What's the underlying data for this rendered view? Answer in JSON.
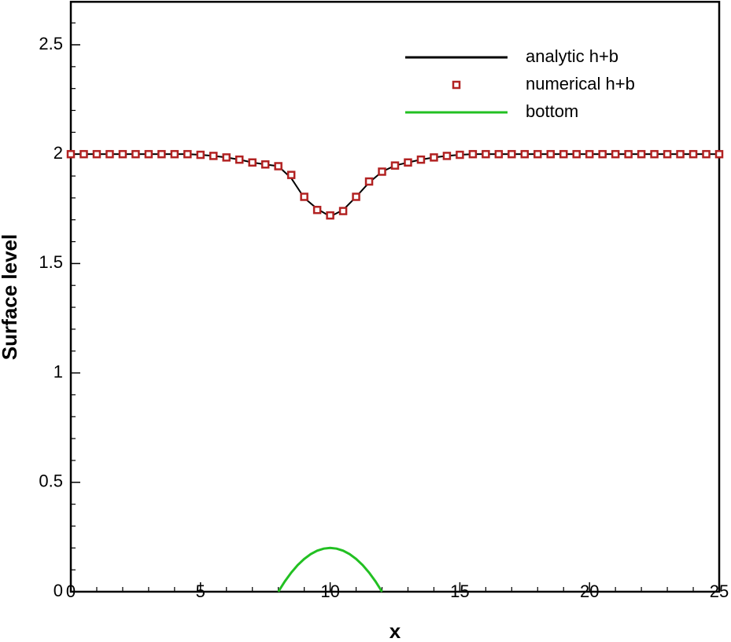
{
  "chart_data": {
    "type": "line",
    "x_label": "x",
    "y_label": "Surface level",
    "xlim": [
      0,
      25
    ],
    "ylim": [
      0,
      2.7
    ],
    "xticks": [
      0,
      5,
      10,
      15,
      20,
      25
    ],
    "yticks": [
      0,
      0.5,
      1,
      1.5,
      2,
      2.5
    ],
    "x_minor_ticks": [
      1,
      2,
      3,
      4,
      6,
      7,
      8,
      9,
      11,
      12,
      13,
      14,
      16,
      17,
      18,
      19,
      21,
      22,
      23,
      24
    ],
    "y_minor_ticks": [
      0.1,
      0.2,
      0.3,
      0.4,
      0.6,
      0.7,
      0.8,
      0.9,
      1.1,
      1.2,
      1.3,
      1.4,
      1.6,
      1.7,
      1.8,
      1.9,
      2.1,
      2.2,
      2.3,
      2.4,
      2.6
    ],
    "legend_position": "upper right",
    "series": [
      {
        "name": "analytic h+b",
        "color": "#000000",
        "style": "line",
        "x": [
          0,
          0.5,
          1,
          1.5,
          2,
          2.5,
          3,
          3.5,
          4,
          4.5,
          5,
          5.5,
          6,
          6.5,
          7,
          7.5,
          8,
          8.5,
          9,
          9.5,
          10,
          10.5,
          11,
          11.5,
          12,
          12.5,
          13,
          13.5,
          14,
          14.5,
          15,
          15.5,
          16,
          16.5,
          17,
          17.5,
          18,
          18.5,
          19,
          19.5,
          20,
          20.5,
          21,
          21.5,
          22,
          22.5,
          23,
          23.5,
          24,
          24.5,
          25
        ],
        "values": [
          2,
          2,
          2,
          2,
          2,
          2,
          2,
          2,
          2,
          2,
          1.997,
          1.992,
          1.985,
          1.975,
          1.962,
          1.953,
          1.945,
          1.89,
          1.8,
          1.75,
          1.715,
          1.745,
          1.805,
          1.87,
          1.92,
          1.948,
          1.962,
          1.975,
          1.985,
          1.992,
          1.997,
          2,
          2,
          2,
          2,
          2,
          2,
          2,
          2,
          2,
          2,
          2,
          2,
          2,
          2,
          2,
          2,
          2,
          2,
          2,
          2
        ]
      },
      {
        "name": "numerical h+b",
        "color": "#b22222",
        "style": "marker",
        "x": [
          0,
          0.5,
          1,
          1.5,
          2,
          2.5,
          3,
          3.5,
          4,
          4.5,
          5,
          5.5,
          6,
          6.5,
          7,
          7.5,
          8,
          8.5,
          9,
          9.5,
          10,
          10.5,
          11,
          11.5,
          12,
          12.5,
          13,
          13.5,
          14,
          14.5,
          15,
          15.5,
          16,
          16.5,
          17,
          17.5,
          18,
          18.5,
          19,
          19.5,
          20,
          20.5,
          21,
          21.5,
          22,
          22.5,
          23,
          23.5,
          24,
          24.5,
          25
        ],
        "values": [
          2,
          2,
          2,
          2,
          2,
          2,
          2,
          2,
          2,
          2,
          1.997,
          1.992,
          1.985,
          1.975,
          1.962,
          1.953,
          1.945,
          1.905,
          1.805,
          1.745,
          1.72,
          1.74,
          1.805,
          1.875,
          1.92,
          1.948,
          1.962,
          1.975,
          1.985,
          1.992,
          1.997,
          2,
          2,
          2,
          2,
          2,
          2,
          2,
          2,
          2,
          2,
          2,
          2,
          2,
          2,
          2,
          2,
          2,
          2,
          2,
          2
        ]
      },
      {
        "name": "bottom",
        "color": "#22c022",
        "style": "line",
        "x": [
          8,
          8.25,
          8.5,
          8.75,
          9,
          9.25,
          9.5,
          9.75,
          10,
          10.25,
          10.5,
          10.75,
          11,
          11.25,
          11.5,
          11.75,
          12
        ],
        "values": [
          0,
          0.046875,
          0.0875,
          0.121875,
          0.15,
          0.171875,
          0.1875,
          0.196875,
          0.2,
          0.196875,
          0.1875,
          0.171875,
          0.15,
          0.121875,
          0.0875,
          0.046875,
          0
        ]
      }
    ]
  }
}
